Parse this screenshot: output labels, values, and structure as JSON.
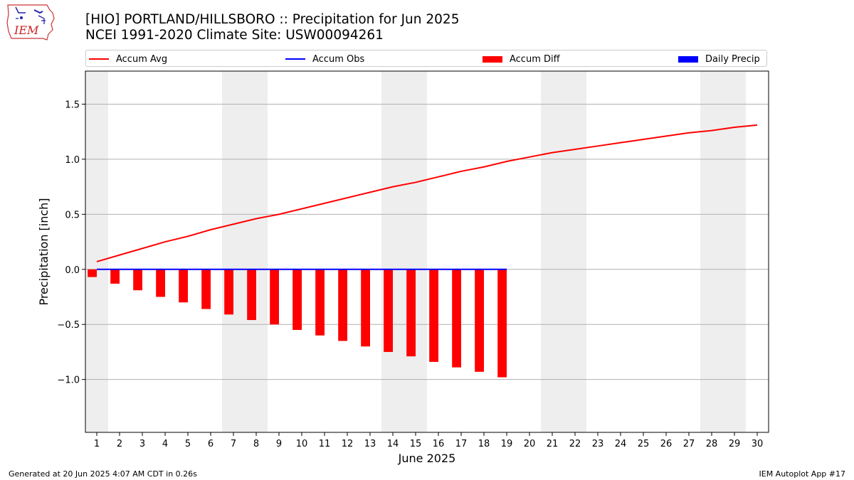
{
  "header": {
    "title_line1": "[HIO] PORTLAND/HILLSBORO :: Precipitation for Jun 2025",
    "title_line2": "NCEI 1991-2020 Climate Site: USW00094261",
    "logo_text": "IEM"
  },
  "legend": {
    "items": [
      {
        "label": "Accum Avg",
        "color": "#ff0000",
        "kind": "line"
      },
      {
        "label": "Accum Obs",
        "color": "#0000ff",
        "kind": "line"
      },
      {
        "label": "Accum Diff",
        "color": "#ff0000",
        "kind": "bar"
      },
      {
        "label": "Daily Precip",
        "color": "#0000ff",
        "kind": "bar"
      }
    ]
  },
  "footer": {
    "generated": "Generated at 20 Jun 2025 4:07 AM CDT in 0.26s",
    "app": "IEM Autoplot App #17"
  },
  "chart_data": {
    "type": "bar",
    "xlabel": "June 2025",
    "ylabel": "Precipitation [inch]",
    "xlim": [
      0.5,
      30.5
    ],
    "ylim": [
      -1.48,
      1.8
    ],
    "yticks": [
      -1.0,
      -0.5,
      0.0,
      0.5,
      1.0,
      1.5
    ],
    "ytick_labels": [
      "−1.0",
      "−0.5",
      "0.0",
      "0.5",
      "1.0",
      "1.5"
    ],
    "xticks": [
      1,
      2,
      3,
      4,
      5,
      6,
      7,
      8,
      9,
      10,
      11,
      12,
      13,
      14,
      15,
      16,
      17,
      18,
      19,
      20,
      21,
      22,
      23,
      24,
      25,
      26,
      27,
      28,
      29,
      30
    ],
    "grid": "horizontal",
    "weekend_bands": [
      [
        0.5,
        1.5
      ],
      [
        6.5,
        8.5
      ],
      [
        13.5,
        15.5
      ],
      [
        20.5,
        22.5
      ],
      [
        27.5,
        29.5
      ]
    ],
    "weekend_color": "#eeeeee",
    "series": [
      {
        "name": "Accum Avg",
        "kind": "line",
        "color": "#ff0000",
        "x": [
          1,
          2,
          3,
          4,
          5,
          6,
          7,
          8,
          9,
          10,
          11,
          12,
          13,
          14,
          15,
          16,
          17,
          18,
          19,
          20,
          21,
          22,
          23,
          24,
          25,
          26,
          27,
          28,
          29,
          30
        ],
        "values": [
          0.07,
          0.13,
          0.19,
          0.25,
          0.3,
          0.36,
          0.41,
          0.46,
          0.5,
          0.55,
          0.6,
          0.65,
          0.7,
          0.75,
          0.79,
          0.84,
          0.89,
          0.93,
          0.98,
          1.02,
          1.06,
          1.09,
          1.12,
          1.15,
          1.18,
          1.21,
          1.24,
          1.26,
          1.29,
          1.31
        ]
      },
      {
        "name": "Accum Obs",
        "kind": "line",
        "color": "#0000ff",
        "x": [
          1,
          2,
          3,
          4,
          5,
          6,
          7,
          8,
          9,
          10,
          11,
          12,
          13,
          14,
          15,
          16,
          17,
          18,
          19
        ],
        "values": [
          0,
          0,
          0,
          0,
          0,
          0,
          0,
          0,
          0,
          0,
          0,
          0,
          0,
          0,
          0,
          0,
          0,
          0,
          0
        ]
      },
      {
        "name": "Accum Diff",
        "kind": "bar",
        "color": "#ff0000",
        "x": [
          1,
          2,
          3,
          4,
          5,
          6,
          7,
          8,
          9,
          10,
          11,
          12,
          13,
          14,
          15,
          16,
          17,
          18,
          19
        ],
        "values": [
          -0.07,
          -0.13,
          -0.19,
          -0.25,
          -0.3,
          -0.36,
          -0.41,
          -0.46,
          -0.5,
          -0.55,
          -0.6,
          -0.65,
          -0.7,
          -0.75,
          -0.79,
          -0.84,
          -0.89,
          -0.93,
          -0.98
        ]
      },
      {
        "name": "Daily Precip",
        "kind": "bar",
        "color": "#0000ff",
        "x": [
          1,
          2,
          3,
          4,
          5,
          6,
          7,
          8,
          9,
          10,
          11,
          12,
          13,
          14,
          15,
          16,
          17,
          18,
          19
        ],
        "values": [
          0,
          0,
          0,
          0,
          0,
          0,
          0,
          0,
          0,
          0,
          0,
          0,
          0,
          0,
          0,
          0,
          0,
          0,
          0
        ]
      }
    ]
  }
}
